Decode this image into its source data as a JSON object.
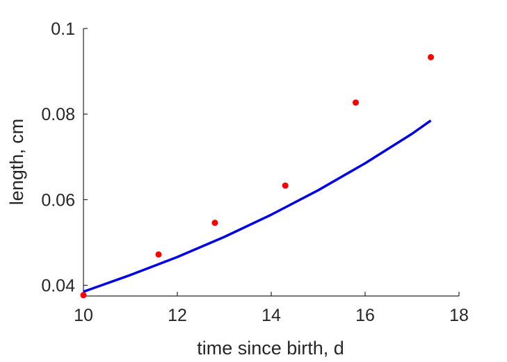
{
  "chart_data": {
    "type": "scatter",
    "title": "",
    "xlabel": "time since birth, d",
    "ylabel": "length, cm",
    "xlim": [
      10,
      18
    ],
    "ylim": [
      0.0375,
      0.1
    ],
    "xticks": [
      10,
      12,
      14,
      16,
      18
    ],
    "xtick_labels": [
      "10",
      "12",
      "14",
      "16",
      "18"
    ],
    "yticks": [
      0.04,
      0.06,
      0.08,
      0.1
    ],
    "ytick_labels": [
      "0.04",
      "0.06",
      "0.08",
      "0.1"
    ],
    "grid": false,
    "series": [
      {
        "kind": "scatter",
        "color": "#ff0000",
        "x": [
          10.0,
          11.6,
          12.8,
          14.3,
          15.8,
          17.4
        ],
        "y": [
          0.0377,
          0.0472,
          0.0546,
          0.0633,
          0.0827,
          0.0933
        ]
      },
      {
        "kind": "line",
        "color": "#0000e6",
        "x": [
          10.0,
          11.0,
          12.0,
          13.0,
          14.0,
          15.0,
          16.0,
          17.0,
          17.4
        ],
        "y": [
          0.0385,
          0.0424,
          0.0466,
          0.0513,
          0.0565,
          0.0622,
          0.0685,
          0.0754,
          0.0785
        ]
      }
    ]
  }
}
